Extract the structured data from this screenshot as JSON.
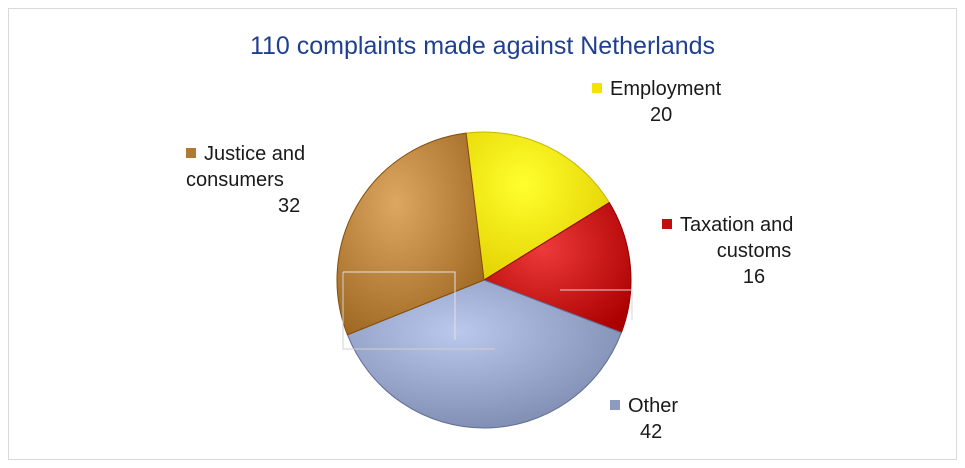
{
  "chart_data": {
    "type": "pie",
    "title": "110 complaints made against Netherlands",
    "slices": [
      {
        "label": "Employment",
        "value": 20,
        "color": "#f5e200"
      },
      {
        "label": "Taxation and customs",
        "value": 16,
        "color": "#c00d0d"
      },
      {
        "label": "Other",
        "value": 42,
        "color": "#8e9bc0"
      },
      {
        "label": "Justice and consumers",
        "value": 32,
        "color": "#b07a34"
      }
    ],
    "labels": {
      "employment": {
        "line1": "Employment",
        "value": "20"
      },
      "taxation": {
        "line1": "Taxation and",
        "line2": "customs",
        "value": "16"
      },
      "other": {
        "line1": "Other",
        "value": "42"
      },
      "justice": {
        "line1": "Justice and",
        "line2": "consumers",
        "value": "32"
      }
    }
  }
}
